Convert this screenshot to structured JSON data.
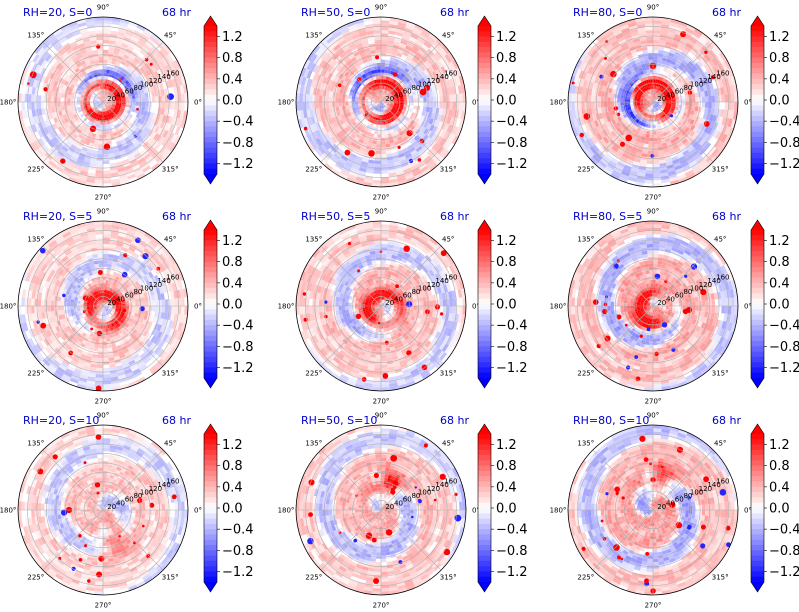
{
  "chart_data": {
    "type": "heatmap",
    "projection": "polar",
    "colormap": "bwr",
    "colors": {
      "negative": "#0000ff",
      "zero": "#ffffff",
      "positive": "#ff0000"
    },
    "color_range": [
      -1.4,
      1.4
    ],
    "colorbar_extend": "both",
    "colorbar_ticks": [
      "1.2",
      "0.8",
      "0.4",
      "0.0",
      "−0.4",
      "−0.8",
      "−1.2"
    ],
    "colorbar_tick_values": [
      1.2,
      0.8,
      0.4,
      0.0,
      -0.4,
      -0.8,
      -1.2
    ],
    "angle_labels": [
      "0°",
      "45°",
      "90°",
      "135°",
      "180°",
      "225°",
      "270°",
      "315°"
    ],
    "angle_values": [
      0,
      45,
      90,
      135,
      180,
      225,
      270,
      315
    ],
    "radial_ticks": [
      20,
      40,
      60,
      80,
      100,
      120,
      140,
      160
    ],
    "radial_max": 180,
    "rows": [
      "S=0",
      "S=5",
      "S=10"
    ],
    "columns": [
      "RH=20",
      "RH=50",
      "RH=80"
    ],
    "panels": [
      {
        "title": "RH=20, S=0",
        "time": "68 hr",
        "rh": 20,
        "s": 0,
        "radial_labels": [
          "20",
          "40",
          "60",
          "80",
          "100",
          "120",
          "140",
          "160"
        ]
      },
      {
        "title": "RH=50, S=0",
        "time": "68 hr",
        "rh": 50,
        "s": 0,
        "radial_labels": [
          "20",
          "40",
          "60",
          "80",
          "100",
          "120",
          "140",
          "160"
        ]
      },
      {
        "title": "RH=80, S=0",
        "time": "68 hr",
        "rh": 80,
        "s": 0,
        "radial_labels": [
          "20",
          "40",
          "60",
          "80",
          "100",
          "120",
          "140",
          "160"
        ]
      },
      {
        "title": "RH=20, S=5",
        "time": "68 hr",
        "rh": 20,
        "s": 5,
        "radial_labels": [
          "20",
          "40",
          "60",
          "80",
          "100",
          "120",
          "140",
          "160"
        ]
      },
      {
        "title": "RH=50, S=5",
        "time": "68 hr",
        "rh": 50,
        "s": 5,
        "radial_labels": [
          "20",
          "40",
          "60",
          "80",
          "100",
          "120",
          "140",
          "160"
        ]
      },
      {
        "title": "RH=80, S=5",
        "time": "68 hr",
        "rh": 80,
        "s": 5,
        "radial_labels": [
          "20",
          "40",
          "60",
          "80",
          "100",
          "120",
          "140",
          "160"
        ]
      },
      {
        "title": "RH=20, S=10",
        "time": "68 hr",
        "rh": 20,
        "s": 10,
        "radial_labels": [
          "20",
          "40",
          "60",
          "80",
          "100",
          "120",
          "140",
          "160"
        ]
      },
      {
        "title": "RH=50, S=10",
        "time": "68 hr",
        "rh": 50,
        "s": 10,
        "radial_labels": [
          "20",
          "40",
          "60",
          "80",
          "100",
          "120",
          "140",
          "160"
        ]
      },
      {
        "title": "RH=80, S=10",
        "time": "68 hr",
        "rh": 80,
        "s": 10,
        "radial_labels": [
          "20",
          "40",
          "60",
          "80",
          "100",
          "120",
          "140",
          "160"
        ]
      }
    ]
  }
}
